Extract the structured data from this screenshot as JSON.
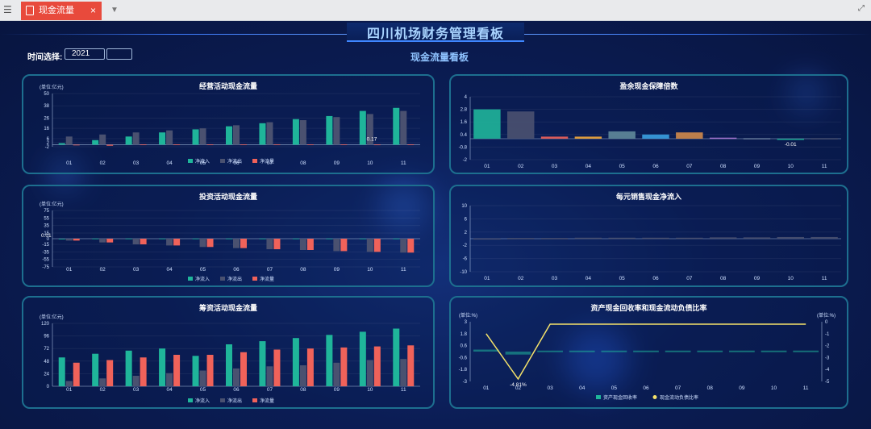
{
  "tabbar": {
    "tab_label": "现金流量",
    "close": "×",
    "dropdown": "▼",
    "fullscreen": "⤢"
  },
  "header": {
    "title": "四川机场财务管理看板",
    "subtitle": "现金流量看板"
  },
  "filter": {
    "label": "时间选择:",
    "year": "2021"
  },
  "colors": {
    "inflow": "#1fb59a",
    "outflow": "#4a5170",
    "net": "#f0625a"
  },
  "chart_data": [
    {
      "id": "operating",
      "type": "bar",
      "title": "经营活动现金流量",
      "unit": "(单位:亿元)",
      "yticks": [
        -2,
        2,
        6,
        16,
        26,
        38,
        50
      ],
      "ylim": [
        -2,
        50
      ],
      "categories": [
        "01",
        "02",
        "03",
        "04",
        "05",
        "06",
        "07",
        "08",
        "09",
        "10",
        "11"
      ],
      "series": [
        {
          "name": "净流入",
          "values": [
            1.5,
            4.5,
            8,
            12,
            15,
            18,
            21,
            25,
            28,
            33,
            36
          ]
        },
        {
          "name": "净流出",
          "values": [
            8,
            10,
            12,
            14,
            16,
            19,
            22,
            24,
            27,
            30,
            33
          ]
        },
        {
          "name": "净流量",
          "values": [
            -0.5,
            -1,
            0.2,
            0.3,
            0.2,
            0.3,
            0.4,
            0.3,
            0.3,
            0.17,
            0.2
          ]
        }
      ],
      "annotations": [
        {
          "text": "0.17"
        }
      ]
    },
    {
      "id": "investing",
      "type": "bar",
      "title": "投资活动现金流量",
      "unit": "(单位:亿元)",
      "yticks": [
        -75,
        -55,
        -35,
        -15,
        0,
        15,
        35,
        55,
        75
      ],
      "ylim": [
        -75,
        75
      ],
      "categories": [
        "01",
        "02",
        "03",
        "04",
        "05",
        "06",
        "07",
        "08",
        "09",
        "10",
        "11"
      ],
      "series": [
        {
          "name": "净流入",
          "values": [
            0.01,
            0.5,
            0.5,
            0.5,
            0.5,
            0.5,
            0.5,
            0.5,
            0.5,
            0.5,
            0.5
          ]
        },
        {
          "name": "净流出",
          "values": [
            -5,
            -10,
            -15,
            -18,
            -22,
            -25,
            -28,
            -30,
            -33,
            -35,
            -37
          ]
        },
        {
          "name": "净流量",
          "values": [
            -5,
            -10,
            -15,
            -18,
            -22,
            -25,
            -28,
            -30,
            -33,
            -35,
            -37
          ]
        }
      ],
      "annotations": [
        {
          "text": "0.01"
        }
      ]
    },
    {
      "id": "financing",
      "type": "bar",
      "title": "筹资活动现金流量",
      "unit": "(单位:亿元)",
      "yticks": [
        0,
        24,
        48,
        72,
        96,
        120
      ],
      "ylim": [
        0,
        120
      ],
      "categories": [
        "01",
        "02",
        "03",
        "04",
        "05",
        "06",
        "07",
        "08",
        "09",
        "10",
        "11"
      ],
      "series": [
        {
          "name": "净流入",
          "values": [
            55,
            62,
            68,
            72,
            58,
            80,
            86,
            92,
            98,
            104,
            110
          ]
        },
        {
          "name": "净流出",
          "values": [
            10,
            15,
            20,
            25,
            30,
            34,
            38,
            40,
            45,
            50,
            52
          ]
        },
        {
          "name": "净流量",
          "values": [
            45,
            50,
            55,
            60,
            60,
            65,
            70,
            72,
            74,
            76,
            78
          ]
        }
      ]
    },
    {
      "id": "surplus",
      "type": "bar",
      "title": "盈余现金保障倍数",
      "yticks": [
        -2,
        -0.8,
        0.4,
        1.6,
        2.8,
        4
      ],
      "ylim": [
        -2,
        4
      ],
      "categories": [
        "01",
        "02",
        "03",
        "04",
        "05",
        "06",
        "07",
        "08",
        "09",
        "10",
        "11"
      ],
      "values": [
        2.8,
        2.6,
        0.2,
        0.2,
        0.7,
        0.4,
        0.6,
        0.1,
        0.05,
        -0.01,
        0.05
      ],
      "bar_colors": [
        "#1fb59a",
        "#4a5170",
        "#f0625a",
        "#f2a93b",
        "#5f8a9a",
        "#3aa0e0",
        "#d08a4a",
        "#b07ad8",
        "#6a7fa0",
        "#1fb59a",
        "#4a5170"
      ],
      "annotations": [
        {
          "text": "-0.01"
        }
      ]
    },
    {
      "id": "per_sales",
      "type": "bar",
      "title": "每元销售现金净流入",
      "yticks": [
        -10,
        -6,
        -2,
        2,
        6,
        10
      ],
      "ylim": [
        -10,
        10
      ],
      "categories": [
        "01",
        "02",
        "03",
        "04",
        "05",
        "06",
        "07",
        "08",
        "09",
        "10",
        "11"
      ],
      "values": [
        0.1,
        0.2,
        0.2,
        0.3,
        0.3,
        0.3,
        0.3,
        0.4,
        0.4,
        0.5,
        0.5
      ]
    },
    {
      "id": "asset_ratio",
      "type": "line",
      "title": "资产现金回收率和现金流动负债比率",
      "unit_left": "(单位:%)",
      "unit_right": "(单位:%)",
      "yticks_left": [
        -3,
        -1.8,
        -0.6,
        0.6,
        1.8,
        3
      ],
      "yticks_right": [
        -5,
        -4,
        -3,
        -2,
        -1,
        0
      ],
      "categories": [
        "01",
        "02",
        "03",
        "04",
        "05",
        "06",
        "07",
        "08",
        "09",
        "10",
        "11"
      ],
      "series": [
        {
          "name": "资产现金回收率",
          "values": [
            0.2,
            -0.3,
            0.1,
            0.1,
            0.1,
            0.1,
            0.1,
            0.1,
            0.1,
            0.1,
            0.1
          ]
        },
        {
          "name": "现金流动负债比率",
          "values": [
            -1,
            -4.8,
            -0.2,
            -0.2,
            -0.2,
            -0.2,
            -0.2,
            -0.2,
            -0.2,
            -0.2,
            -0.2
          ]
        }
      ],
      "annotations": [
        {
          "text": "-4.81%"
        }
      ]
    }
  ]
}
